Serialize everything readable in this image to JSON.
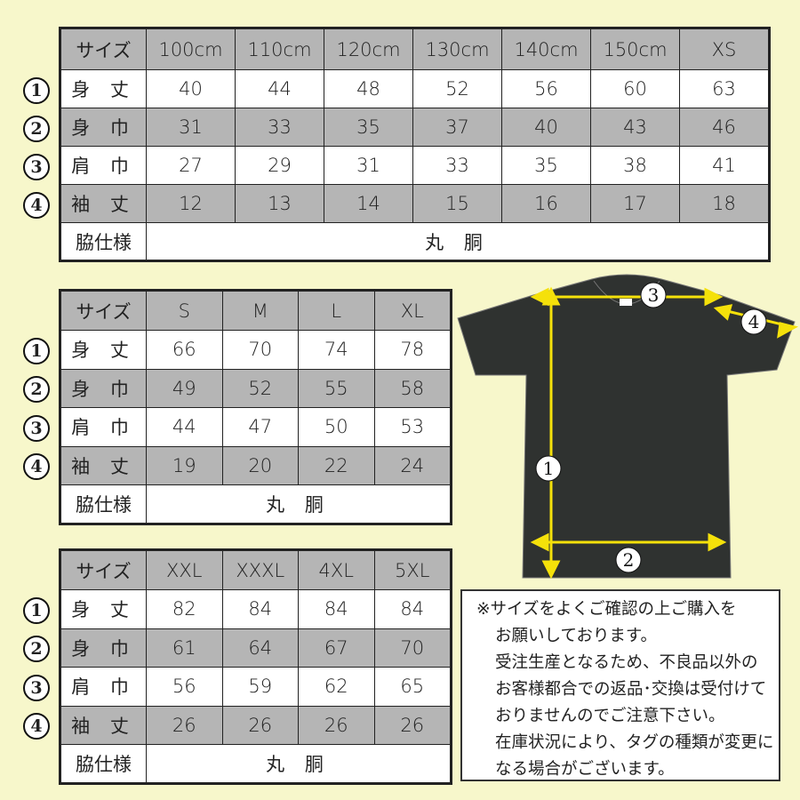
{
  "row_markers": [
    "1",
    "2",
    "3",
    "4"
  ],
  "tables": [
    {
      "header": [
        "サイズ",
        "100cm",
        "110cm",
        "120cm",
        "130cm",
        "140cm",
        "150cm",
        "XS"
      ],
      "rows": [
        {
          "label": "身 丈",
          "values": [
            "40",
            "44",
            "48",
            "52",
            "56",
            "60",
            "63"
          ]
        },
        {
          "label": "身 巾",
          "values": [
            "31",
            "33",
            "35",
            "37",
            "40",
            "43",
            "46"
          ]
        },
        {
          "label": "肩 巾",
          "values": [
            "27",
            "29",
            "31",
            "33",
            "35",
            "38",
            "41"
          ]
        },
        {
          "label": "袖 丈",
          "values": [
            "12",
            "13",
            "14",
            "15",
            "16",
            "17",
            "18"
          ]
        }
      ],
      "side_label": "脇仕様",
      "side_value": "丸 胴"
    },
    {
      "header": [
        "サイズ",
        "S",
        "M",
        "L",
        "XL"
      ],
      "rows": [
        {
          "label": "身 丈",
          "values": [
            "66",
            "70",
            "74",
            "78"
          ]
        },
        {
          "label": "身 巾",
          "values": [
            "49",
            "52",
            "55",
            "58"
          ]
        },
        {
          "label": "肩 巾",
          "values": [
            "44",
            "47",
            "50",
            "53"
          ]
        },
        {
          "label": "袖 丈",
          "values": [
            "19",
            "20",
            "22",
            "24"
          ]
        }
      ],
      "side_label": "脇仕様",
      "side_value": "丸 胴"
    },
    {
      "header": [
        "サイズ",
        "XXL",
        "XXXL",
        "4XL",
        "5XL"
      ],
      "rows": [
        {
          "label": "身 丈",
          "values": [
            "82",
            "84",
            "84",
            "84"
          ]
        },
        {
          "label": "身 巾",
          "values": [
            "61",
            "64",
            "67",
            "70"
          ]
        },
        {
          "label": "肩 巾",
          "values": [
            "56",
            "59",
            "62",
            "65"
          ]
        },
        {
          "label": "袖 丈",
          "values": [
            "26",
            "26",
            "26",
            "26"
          ]
        }
      ],
      "side_label": "脇仕様",
      "side_value": "丸 胴"
    }
  ],
  "diagram": {
    "markers": [
      "1",
      "2",
      "3",
      "4"
    ],
    "shirt_color": "#2f3230",
    "arrow_color": "#f5e10a"
  },
  "note": {
    "lines": [
      "※サイズをよくご確認の上ご購入を",
      "お願いしております。",
      "受注生産となるため、不良品以外の",
      "お客様都合での返品･交換は受付けて",
      "おりませんのでご注意下さい。",
      "在庫状況により、タグの種類が変更に",
      "なる場合がございます。"
    ]
  },
  "colors": {
    "background": "#f7f7cb",
    "gray_row": "#b5b5b5"
  }
}
